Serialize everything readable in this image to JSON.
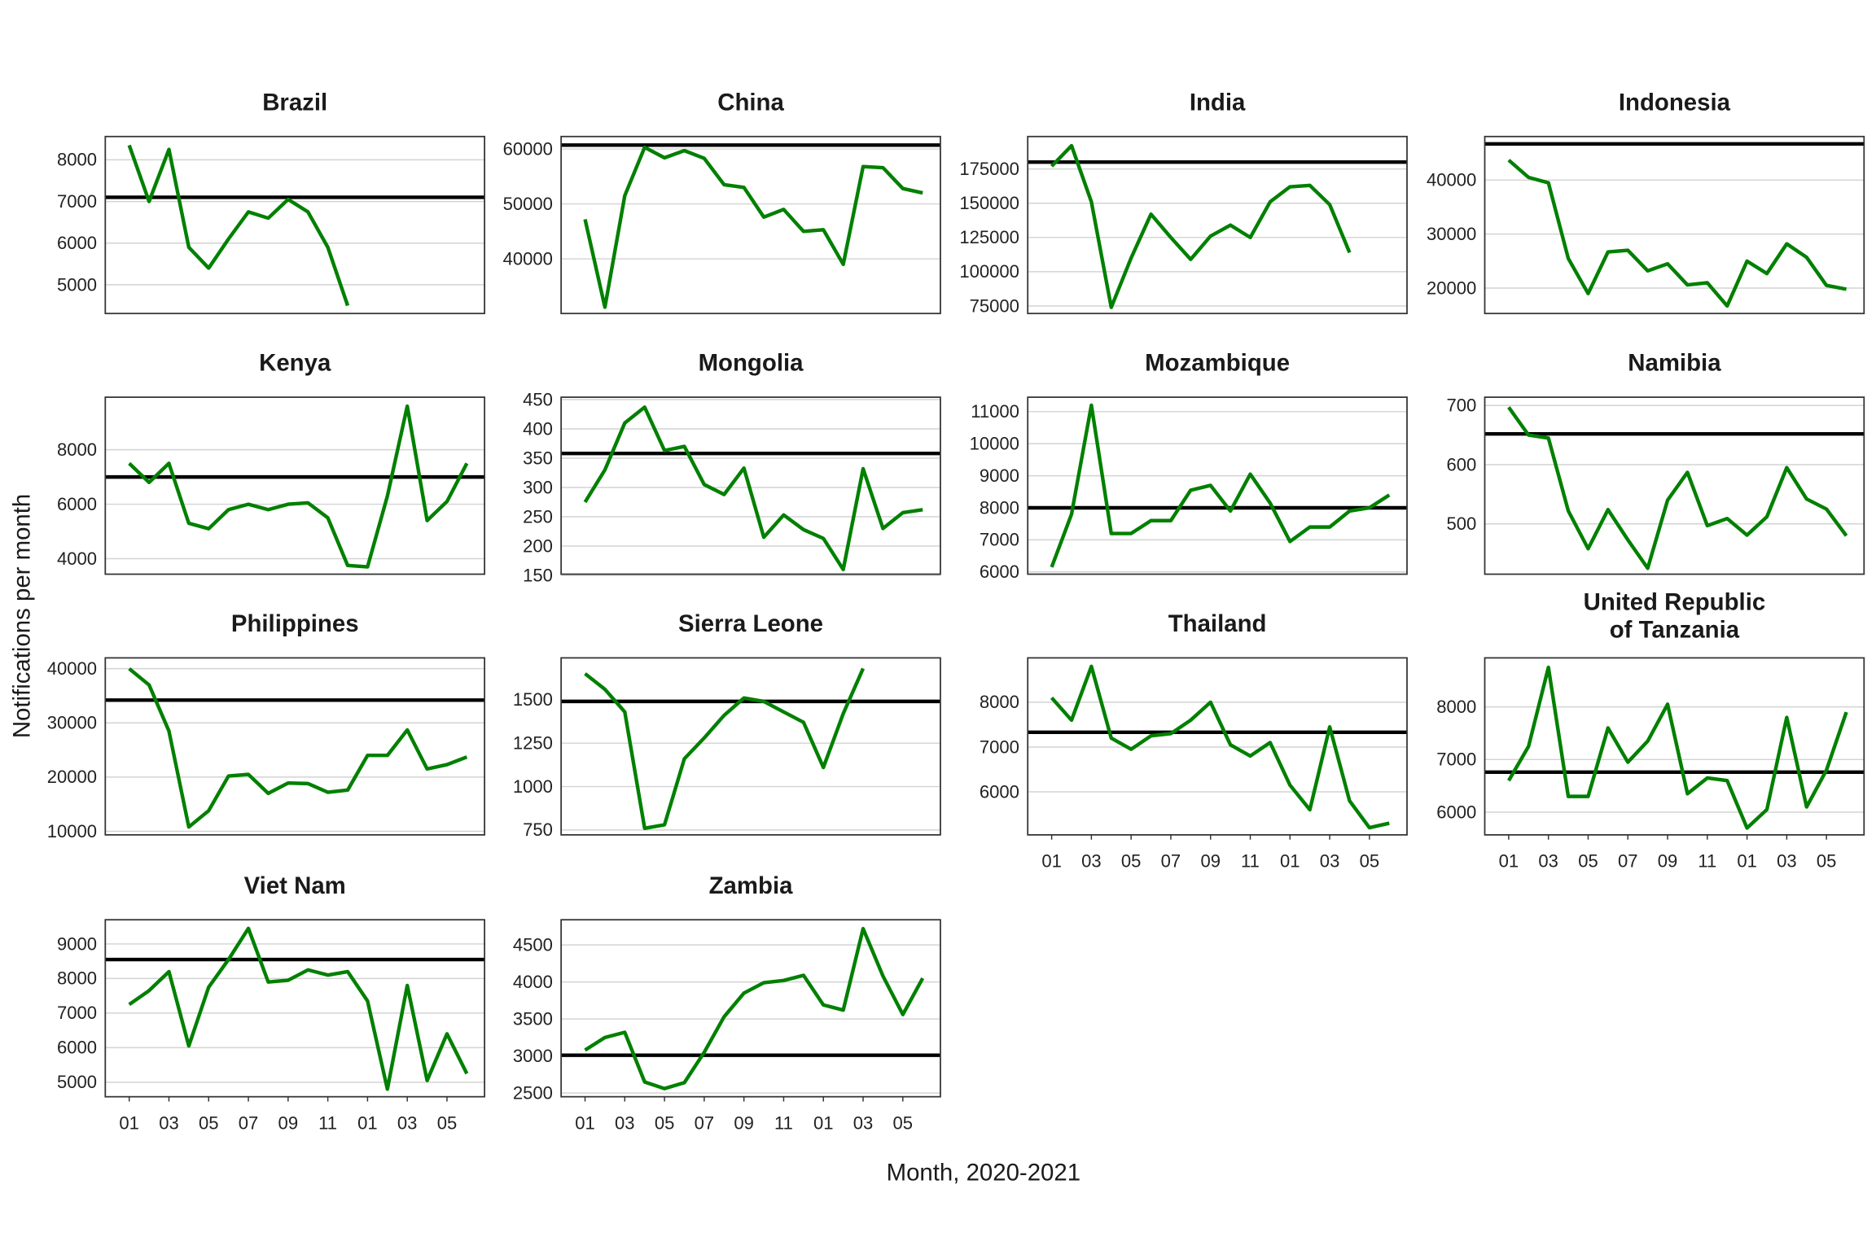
{
  "chart_data": {
    "type": "line",
    "layout": "small-multiples 4 columns, free y scales",
    "xlabel": "Month, 2020-2021",
    "ylabel": "Notifications per month",
    "x_months": [
      "2020-01",
      "2020-02",
      "2020-03",
      "2020-04",
      "2020-05",
      "2020-06",
      "2020-07",
      "2020-08",
      "2020-09",
      "2020-10",
      "2020-11",
      "2020-12",
      "2021-01",
      "2021-02",
      "2021-03",
      "2021-04",
      "2021-05",
      "2021-06"
    ],
    "x_tick_labels": [
      "01",
      "03",
      "05",
      "07",
      "09",
      "11",
      "01",
      "03",
      "05"
    ],
    "grid": true,
    "colors": {
      "series": "#008000",
      "reference_line": "#000000",
      "grid": "#d3d3d3",
      "frame": "#333333"
    },
    "panels": [
      {
        "title": "Brazil",
        "reference": 7100,
        "ylim": [
          4310,
          8560
        ],
        "yticks": [
          5000,
          6000,
          7000,
          8000
        ],
        "values": [
          8350,
          7000,
          8250,
          5900,
          5400,
          6100,
          6750,
          6600,
          7050,
          6750,
          5900,
          4500
        ]
      },
      {
        "title": "China",
        "reference": 60700,
        "ylim": [
          30050,
          62270
        ],
        "yticks": [
          40000,
          50000,
          60000
        ],
        "values": [
          47200,
          31200,
          51500,
          60300,
          58400,
          59700,
          58300,
          53500,
          53000,
          47600,
          49000,
          45000,
          45300,
          39000,
          56800,
          56600,
          52800,
          52000
        ]
      },
      {
        "title": "India",
        "reference": 180000,
        "ylim": [
          69500,
          198700
        ],
        "yticks": [
          75000,
          100000,
          125000,
          150000,
          175000
        ],
        "values": [
          177000,
          192000,
          151000,
          74000,
          110000,
          142000,
          125000,
          109000,
          126000,
          134000,
          125000,
          151000,
          162000,
          163000,
          149000,
          114000
        ]
      },
      {
        "title": "Indonesia",
        "reference": 46700,
        "ylim": [
          15300,
          48070
        ],
        "yticks": [
          20000,
          30000,
          40000
        ],
        "values": [
          43700,
          40500,
          39500,
          25500,
          19000,
          26700,
          27000,
          23200,
          24500,
          20600,
          21000,
          16700,
          25000,
          22700,
          28200,
          25700,
          20500,
          19800
        ]
      },
      {
        "title": "Kenya",
        "reference": 7000,
        "ylim": [
          3430,
          9930
        ],
        "yticks": [
          4000,
          6000,
          8000
        ],
        "values": [
          7500,
          6800,
          7500,
          5300,
          5100,
          5800,
          6000,
          5800,
          6000,
          6050,
          5500,
          3750,
          3700,
          6300,
          9600,
          5400,
          6100,
          7500
        ]
      },
      {
        "title": "Mongolia",
        "reference": 358,
        "ylim": [
          152,
          454
        ],
        "yticks": [
          150,
          200,
          250,
          300,
          350,
          400,
          450
        ],
        "values": [
          275,
          330,
          410,
          437,
          363,
          370,
          305,
          288,
          333,
          215,
          253,
          228,
          213,
          160,
          332,
          230,
          257,
          262
        ]
      },
      {
        "title": "Mozambique",
        "reference": 8000,
        "ylim": [
          5930,
          11450
        ],
        "yticks": [
          6000,
          7000,
          8000,
          9000,
          10000,
          11000
        ],
        "values": [
          6150,
          7800,
          11200,
          7200,
          7200,
          7600,
          7600,
          8550,
          8700,
          7900,
          9050,
          8150,
          6950,
          7400,
          7400,
          7900,
          8000,
          8400
        ]
      },
      {
        "title": "Namibia",
        "reference": 652,
        "ylim": [
          415,
          714
        ],
        "yticks": [
          500,
          600,
          700
        ],
        "values": [
          697,
          650,
          645,
          522,
          458,
          524,
          473,
          425,
          540,
          587,
          497,
          509,
          481,
          512,
          595,
          542,
          525,
          480
        ]
      },
      {
        "title": "Philippines",
        "reference": 34200,
        "ylim": [
          9340,
          41990
        ],
        "yticks": [
          10000,
          20000,
          30000,
          40000
        ],
        "values": [
          40000,
          37000,
          28500,
          10800,
          13800,
          20200,
          20500,
          17000,
          18900,
          18800,
          17200,
          17600,
          24000,
          24000,
          28700,
          21500,
          22300,
          23700
        ]
      },
      {
        "title": "Sierra Leone",
        "reference": 1490,
        "ylim": [
          722,
          1741
        ],
        "yticks": [
          750,
          1000,
          1250,
          1500
        ],
        "values": [
          1650,
          1560,
          1430,
          760,
          780,
          1160,
          1280,
          1410,
          1510,
          1490,
          1430,
          1370,
          1110,
          1420,
          1680
        ]
      },
      {
        "title": "Thailand",
        "reference": 7330,
        "ylim": [
          5040,
          8990
        ],
        "yticks": [
          6000,
          7000,
          8000
        ],
        "values": [
          8100,
          7600,
          8800,
          7200,
          6950,
          7250,
          7300,
          7600,
          8000,
          7050,
          6800,
          7100,
          6150,
          5600,
          7450,
          5800,
          5200,
          5300
        ]
      },
      {
        "title": "United Republic\nof Tanzania",
        "reference": 6760,
        "ylim": [
          5570,
          8930
        ],
        "yticks": [
          6000,
          7000,
          8000
        ],
        "values": [
          6600,
          7250,
          8750,
          6300,
          6300,
          7600,
          6950,
          7350,
          8050,
          6350,
          6650,
          6600,
          5700,
          6050,
          7800,
          6100,
          6800,
          7900
        ]
      },
      {
        "title": "Viet Nam",
        "reference": 8550,
        "ylim": [
          4580,
          9700
        ],
        "yticks": [
          5000,
          6000,
          7000,
          8000,
          9000
        ],
        "values": [
          7250,
          7650,
          8200,
          6050,
          7750,
          8550,
          9450,
          7900,
          7950,
          8250,
          8100,
          8200,
          7350,
          4800,
          7800,
          5050,
          6400,
          5250
        ]
      },
      {
        "title": "Zambia",
        "reference": 3010,
        "ylim": [
          2450,
          4840
        ],
        "yticks": [
          2500,
          3000,
          3500,
          4000,
          4500
        ],
        "values": [
          3080,
          3250,
          3320,
          2650,
          2560,
          2640,
          3050,
          3530,
          3850,
          3990,
          4020,
          4090,
          3690,
          3620,
          4720,
          4080,
          3560,
          4050
        ]
      }
    ]
  }
}
